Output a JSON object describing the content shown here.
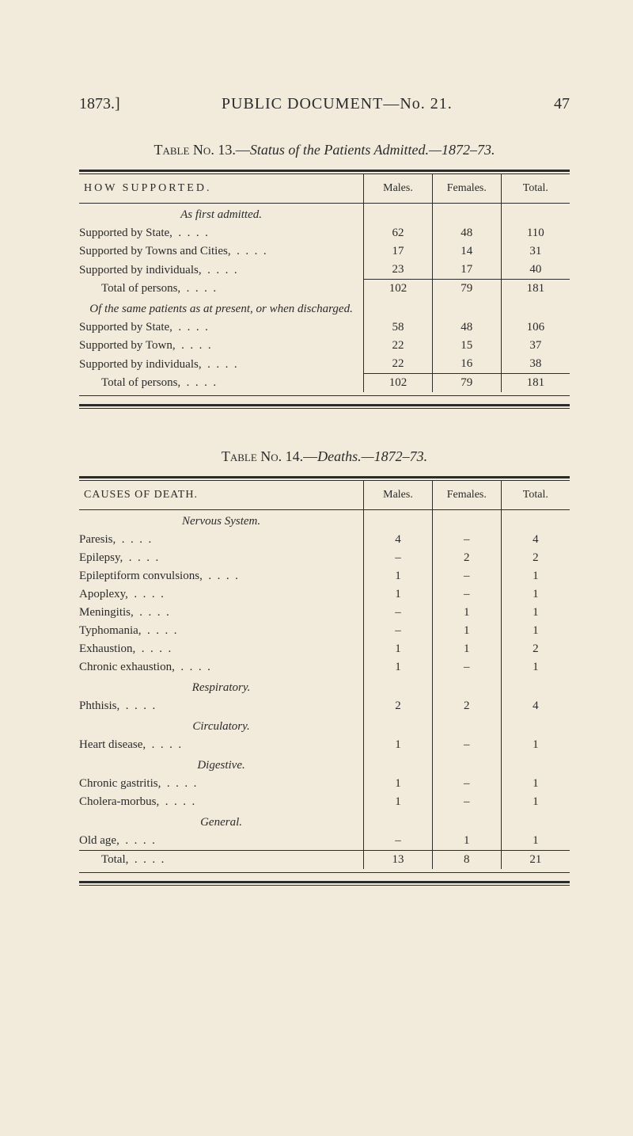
{
  "header": {
    "year": "1873.]",
    "center": "PUBLIC DOCUMENT—No. 21.",
    "page": "47"
  },
  "table13": {
    "title_prefix": "Table No. 13.—",
    "title_italic": "Status of the Patients Admitted.—1872–73.",
    "columns": {
      "c0": "HOW SUPPORTED.",
      "c1": "Males.",
      "c2": "Females.",
      "c3": "Total."
    },
    "sec1_head": "As first admitted.",
    "rows1": [
      {
        "label": "Supported by State,",
        "m": "62",
        "f": "48",
        "t": "110"
      },
      {
        "label": "Supported by Towns and Cities,",
        "m": "17",
        "f": "14",
        "t": "31"
      },
      {
        "label": "Supported by individuals,",
        "m": "23",
        "f": "17",
        "t": "40"
      }
    ],
    "total1": {
      "label": "Total of persons,",
      "m": "102",
      "f": "79",
      "t": "181"
    },
    "sec2_head": "Of the same patients as at present, or when discharged.",
    "rows2": [
      {
        "label": "Supported by State,",
        "m": "58",
        "f": "48",
        "t": "106"
      },
      {
        "label": "Supported by Town,",
        "m": "22",
        "f": "15",
        "t": "37"
      },
      {
        "label": "Supported by individuals,",
        "m": "22",
        "f": "16",
        "t": "38"
      }
    ],
    "total2": {
      "label": "Total of persons,",
      "m": "102",
      "f": "79",
      "t": "181"
    }
  },
  "table14": {
    "title_prefix": "Table No. 14.—",
    "title_italic": "Deaths.—1872–73.",
    "columns": {
      "c0": "CAUSES OF DEATH.",
      "c1": "Males.",
      "c2": "Females.",
      "c3": "Total."
    },
    "sections": [
      {
        "head": "Nervous System.",
        "rows": [
          {
            "label": "Paresis,",
            "m": "4",
            "f": "–",
            "t": "4"
          },
          {
            "label": "Epilepsy,",
            "m": "–",
            "f": "2",
            "t": "2"
          },
          {
            "label": "Epileptiform convulsions,",
            "m": "1",
            "f": "–",
            "t": "1"
          },
          {
            "label": "Apoplexy,",
            "m": "1",
            "f": "–",
            "t": "1"
          },
          {
            "label": "Meningitis,",
            "m": "–",
            "f": "1",
            "t": "1"
          },
          {
            "label": "Typhomania,",
            "m": "–",
            "f": "1",
            "t": "1"
          },
          {
            "label": "Exhaustion,",
            "m": "1",
            "f": "1",
            "t": "2"
          },
          {
            "label": "Chronic exhaustion,",
            "m": "1",
            "f": "–",
            "t": "1"
          }
        ]
      },
      {
        "head": "Respiratory.",
        "rows": [
          {
            "label": "Phthisis,",
            "m": "2",
            "f": "2",
            "t": "4"
          }
        ]
      },
      {
        "head": "Circulatory.",
        "rows": [
          {
            "label": "Heart disease,",
            "m": "1",
            "f": "–",
            "t": "1"
          }
        ]
      },
      {
        "head": "Digestive.",
        "rows": [
          {
            "label": "Chronic gastritis,",
            "m": "1",
            "f": "–",
            "t": "1"
          },
          {
            "label": "Cholera-morbus,",
            "m": "1",
            "f": "–",
            "t": "1"
          }
        ]
      },
      {
        "head": "General.",
        "rows": [
          {
            "label": "Old age,",
            "m": "–",
            "f": "1",
            "t": "1"
          }
        ]
      }
    ],
    "grand": {
      "label": "Total,",
      "m": "13",
      "f": "8",
      "t": "21"
    }
  }
}
